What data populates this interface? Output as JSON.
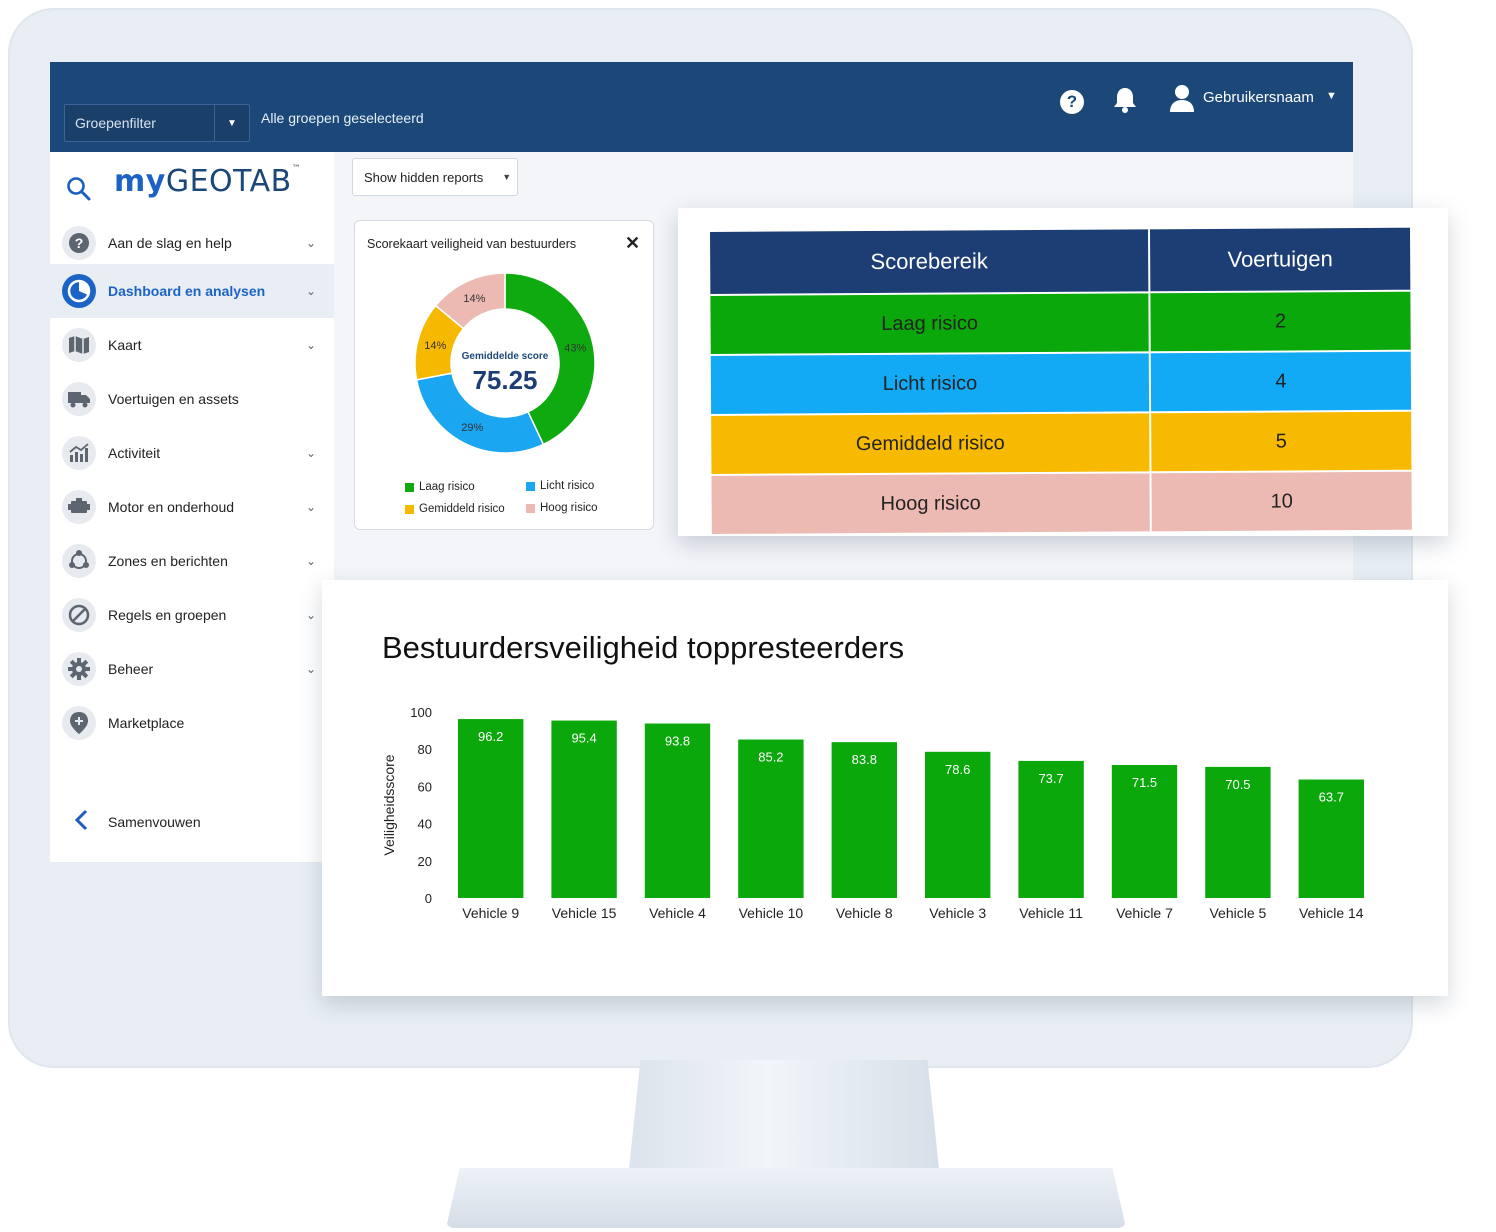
{
  "topbar": {
    "group_filter_label": "Groepenfilter",
    "group_info": "Alle groepen geselecteerd",
    "username": "Gebruikersnaam",
    "help_glyph": "?"
  },
  "sidebar": {
    "logo_my": "my",
    "logo_geotab": "GEOTAB",
    "logo_tm": "™",
    "items": [
      {
        "label": "Aan de slag en help",
        "icon": "help-circle-icon",
        "chevron": true
      },
      {
        "label": "Dashboard en analysen",
        "icon": "dashboard-icon",
        "chevron": true,
        "active": true
      },
      {
        "label": "Kaart",
        "icon": "map-icon",
        "chevron": true
      },
      {
        "label": "Voertuigen en assets",
        "icon": "truck-icon",
        "chevron": false
      },
      {
        "label": "Activiteit",
        "icon": "activity-chart-icon",
        "chevron": true
      },
      {
        "label": "Motor en onderhoud",
        "icon": "engine-icon",
        "chevron": true
      },
      {
        "label": "Zones en berichten",
        "icon": "zones-icon",
        "chevron": true
      },
      {
        "label": "Regels en groepen",
        "icon": "rules-icon",
        "chevron": true
      },
      {
        "label": "Beheer",
        "icon": "gear-icon",
        "chevron": true
      },
      {
        "label": "Marketplace",
        "icon": "marketplace-icon",
        "chevron": false
      }
    ],
    "collapse_label": "Samenvouwen"
  },
  "content": {
    "hidden_reports_label": "Show hidden reports"
  },
  "score_card": {
    "title": "Scorekaart veiligheid van bestuurders",
    "center_label": "Gemiddelde score",
    "center_value": "75.25",
    "segments": [
      {
        "label": "Laag risico",
        "percent": 43,
        "color": "#0faa0f"
      },
      {
        "label": "Licht risico",
        "percent": 29,
        "color": "#1aa6f0"
      },
      {
        "label": "Gemiddeld risico",
        "percent": 14,
        "color": "#f7b900"
      },
      {
        "label": "Hoog risico",
        "percent": 14,
        "color": "#ecbab2"
      }
    ]
  },
  "risk_table": {
    "headers": [
      "Scorebereik",
      "Voertuigen"
    ],
    "rows": [
      {
        "range": "Laag risico",
        "vehicles": "2",
        "color": "#0aa80a"
      },
      {
        "range": "Licht risico",
        "vehicles": "4",
        "color": "#12aaf5"
      },
      {
        "range": "Gemiddeld risico",
        "vehicles": "5",
        "color": "#f8ba00"
      },
      {
        "range": "Hoog risico",
        "vehicles": "10",
        "color": "#ecbab2"
      }
    ]
  },
  "chart_data": {
    "type": "bar",
    "title": "Bestuurdersveiligheid toppresteerders",
    "xlabel": "",
    "ylabel": "Veiligheidsscore",
    "ylim": [
      0,
      100
    ],
    "yticks": [
      0,
      20,
      40,
      60,
      80,
      100
    ],
    "categories": [
      "Vehicle 9",
      "Vehicle 15",
      "Vehicle 4",
      "Vehicle 10",
      "Vehicle 8",
      "Vehicle 3",
      "Vehicle 11",
      "Vehicle 7",
      "Vehicle 5",
      "Vehicle 14"
    ],
    "values": [
      96.2,
      95.4,
      93.8,
      85.2,
      83.8,
      78.6,
      73.7,
      71.5,
      70.5,
      63.7
    ],
    "bar_color": "#0aa80a",
    "data_labels": true,
    "grid": false
  }
}
